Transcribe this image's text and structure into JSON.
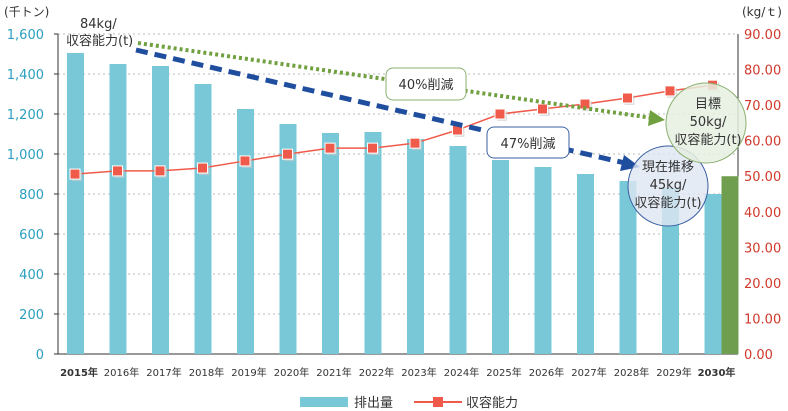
{
  "chart_data": {
    "type": "bar",
    "categories": [
      "2015年",
      "2016年",
      "2017年",
      "2018年",
      "2019年",
      "2020年",
      "2021年",
      "2022年",
      "2023年",
      "2024年",
      "2025年",
      "2026年",
      "2027年",
      "2028年",
      "2029年",
      "2030年"
    ],
    "series": [
      {
        "name": "排出量",
        "type": "bar",
        "axis": "left",
        "color": "#78c8d8",
        "values": [
          1505,
          1450,
          1440,
          1350,
          1225,
          1150,
          1105,
          1110,
          1075,
          1040,
          970,
          935,
          900,
          865,
          830,
          800
        ]
      },
      {
        "name": "収容能力",
        "type": "line",
        "axis": "right",
        "color": "#f05a4a",
        "values": [
          50.6,
          51.5,
          51.5,
          52.3,
          54.3,
          56.2,
          57.9,
          57.9,
          59.3,
          63.0,
          67.5,
          68.9,
          70.3,
          72.0,
          74.0,
          75.6
        ]
      },
      {
        "type": "bar",
        "axis": "right",
        "color": "#6f9e4f",
        "target_value_2030": 50
      }
    ],
    "left_axis": {
      "unit": "(千トン)",
      "ylim": [
        0,
        1600
      ],
      "ticks": [
        "0",
        "200",
        "400",
        "600",
        "800",
        "1,000",
        "1,200",
        "1,400",
        "1,600"
      ],
      "color": "#2a9fc0"
    },
    "right_axis": {
      "unit": "(kg/ｔ)",
      "ylim": [
        0,
        90
      ],
      "ticks": [
        "0.00",
        "10.00",
        "20.00",
        "30.00",
        "40.00",
        "50.00",
        "60.00",
        "70.00",
        "80.00",
        "90.00"
      ],
      "color": "#d0392b"
    },
    "grid": true,
    "legend": "bottom",
    "annotations": {
      "start": [
        "84kg/",
        "収容能力(t)"
      ],
      "reduction_40": "40%削減",
      "reduction_47": "47%削減",
      "target": [
        "目標",
        "50kg/",
        "収容能力(t)"
      ],
      "trend": [
        "現在推移",
        "45kg/",
        "収容能力(t)"
      ]
    }
  }
}
